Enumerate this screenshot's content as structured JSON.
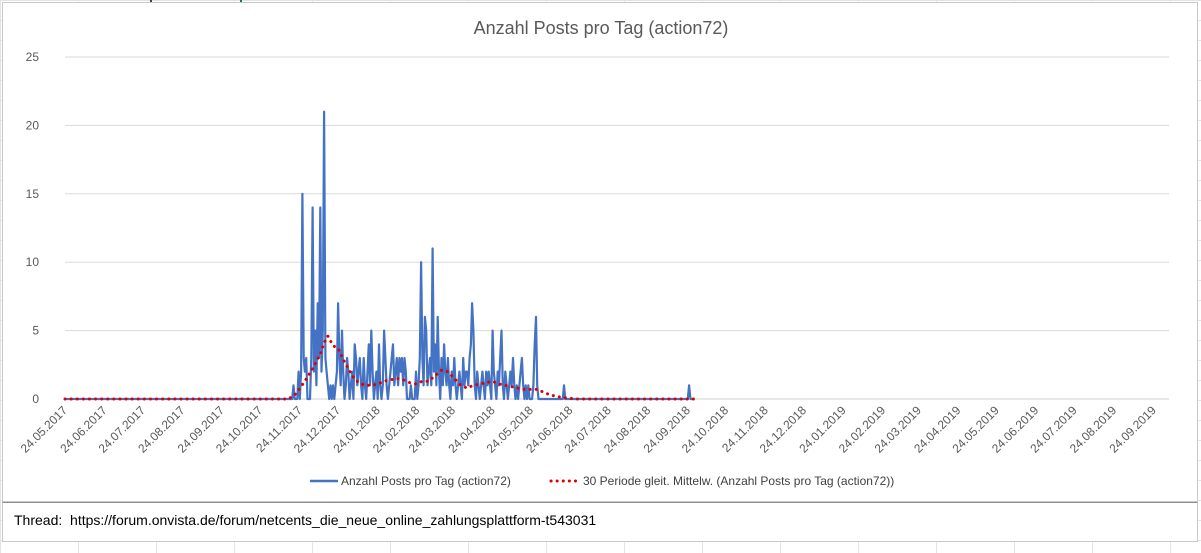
{
  "chart_data": {
    "type": "line",
    "title": "Anzahl Posts pro Tag (action72)",
    "xlabel": "",
    "ylabel": "",
    "ylim": [
      0,
      25
    ],
    "yticks": [
      0,
      5,
      10,
      15,
      20,
      25
    ],
    "grid": true,
    "legend_position": "bottom",
    "x_range_days": [
      0,
      493
    ],
    "x_ticks": [
      {
        "day": 0,
        "label": "24.05.2017"
      },
      {
        "day": 31,
        "label": "24.06.2017"
      },
      {
        "day": 61,
        "label": "24.07.2017"
      },
      {
        "day": 92,
        "label": "24.08.2017"
      },
      {
        "day": 123,
        "label": "24.09.2017"
      },
      {
        "day": 153,
        "label": "24.10.2017"
      },
      {
        "day": 184,
        "label": "24.11.2017"
      },
      {
        "day": 214,
        "label": "24.12.2017"
      },
      {
        "day": 245,
        "label": "24.01.2018"
      },
      {
        "day": 276,
        "label": "24.02.2018"
      },
      {
        "day": 304,
        "label": "24.03.2018"
      },
      {
        "day": 335,
        "label": "24.04.2018"
      },
      {
        "day": 365,
        "label": "24.05.2018"
      },
      {
        "day": 396,
        "label": "24.06.2018"
      },
      {
        "day": 426,
        "label": "24.07.2018"
      },
      {
        "day": 457,
        "label": "24.08.2018"
      },
      {
        "day": 488,
        "label": "24.09.2018"
      },
      {
        "day": 518,
        "label": "24.10.2018"
      },
      {
        "day": 549,
        "label": "24.11.2018"
      },
      {
        "day": 579,
        "label": "24.12.2018"
      },
      {
        "day": 610,
        "label": "24.01.2019"
      },
      {
        "day": 641,
        "label": "24.02.2019"
      },
      {
        "day": 669,
        "label": "24.03.2019"
      },
      {
        "day": 700,
        "label": "24.04.2019"
      },
      {
        "day": 730,
        "label": "24.05.2019"
      },
      {
        "day": 761,
        "label": "24.06.2019"
      },
      {
        "day": 791,
        "label": "24.07.2019"
      },
      {
        "day": 822,
        "label": "24.08.2019"
      },
      {
        "day": 853,
        "label": "24.09.2019"
      }
    ],
    "x_max_day": 865,
    "series": [
      {
        "name": "Anzahl Posts pro Tag (action72)",
        "style": "solid",
        "color": "#4472C4",
        "points": [
          [
            0,
            0
          ],
          [
            178,
            0
          ],
          [
            179,
            1
          ],
          [
            180,
            0
          ],
          [
            182,
            0
          ],
          [
            183,
            2
          ],
          [
            184,
            0
          ],
          [
            185,
            2
          ],
          [
            186,
            15
          ],
          [
            187,
            3
          ],
          [
            188,
            2
          ],
          [
            189,
            3
          ],
          [
            190,
            0
          ],
          [
            192,
            0
          ],
          [
            193,
            3
          ],
          [
            194,
            14
          ],
          [
            195,
            2
          ],
          [
            196,
            5
          ],
          [
            197,
            1
          ],
          [
            198,
            7
          ],
          [
            199,
            3
          ],
          [
            200,
            14
          ],
          [
            201,
            2
          ],
          [
            202,
            5
          ],
          [
            203,
            21
          ],
          [
            204,
            3
          ],
          [
            205,
            2
          ],
          [
            206,
            1
          ],
          [
            207,
            0
          ],
          [
            208,
            1
          ],
          [
            209,
            0
          ],
          [
            210,
            1
          ],
          [
            211,
            0
          ],
          [
            212,
            1
          ],
          [
            213,
            2
          ],
          [
            214,
            7
          ],
          [
            215,
            3
          ],
          [
            216,
            1
          ],
          [
            217,
            5
          ],
          [
            218,
            2
          ],
          [
            219,
            0
          ],
          [
            220,
            1
          ],
          [
            221,
            3
          ],
          [
            222,
            2
          ],
          [
            223,
            0
          ],
          [
            224,
            1
          ],
          [
            225,
            2
          ],
          [
            226,
            0
          ],
          [
            227,
            4
          ],
          [
            228,
            3
          ],
          [
            229,
            1
          ],
          [
            230,
            2
          ],
          [
            231,
            3
          ],
          [
            232,
            1
          ],
          [
            233,
            0
          ],
          [
            234,
            3
          ],
          [
            235,
            1
          ],
          [
            236,
            0
          ],
          [
            237,
            2
          ],
          [
            238,
            4
          ],
          [
            239,
            1
          ],
          [
            240,
            5
          ],
          [
            241,
            2
          ],
          [
            242,
            0
          ],
          [
            243,
            1
          ],
          [
            244,
            2
          ],
          [
            245,
            0
          ],
          [
            246,
            4
          ],
          [
            247,
            1
          ],
          [
            248,
            0
          ],
          [
            249,
            1
          ],
          [
            250,
            5
          ],
          [
            251,
            3
          ],
          [
            252,
            1
          ],
          [
            253,
            0
          ],
          [
            254,
            1
          ],
          [
            255,
            2
          ],
          [
            256,
            3
          ],
          [
            257,
            4
          ],
          [
            258,
            1
          ],
          [
            259,
            2
          ],
          [
            260,
            3
          ],
          [
            261,
            1
          ],
          [
            262,
            3
          ],
          [
            263,
            2
          ],
          [
            264,
            3
          ],
          [
            265,
            1
          ],
          [
            266,
            3
          ],
          [
            267,
            2
          ],
          [
            268,
            0
          ],
          [
            270,
            0
          ],
          [
            271,
            1
          ],
          [
            272,
            0
          ],
          [
            274,
            0
          ],
          [
            275,
            2
          ],
          [
            276,
            0
          ],
          [
            277,
            1
          ],
          [
            278,
            3
          ],
          [
            279,
            10
          ],
          [
            280,
            3
          ],
          [
            281,
            1
          ],
          [
            282,
            6
          ],
          [
            283,
            5
          ],
          [
            284,
            1
          ],
          [
            285,
            2
          ],
          [
            286,
            3
          ],
          [
            287,
            1
          ],
          [
            288,
            11
          ],
          [
            289,
            2
          ],
          [
            290,
            4
          ],
          [
            291,
            1
          ],
          [
            292,
            6
          ],
          [
            293,
            2
          ],
          [
            294,
            0
          ],
          [
            295,
            3
          ],
          [
            296,
            1
          ],
          [
            297,
            4
          ],
          [
            298,
            2
          ],
          [
            299,
            1
          ],
          [
            300,
            3
          ],
          [
            301,
            1
          ],
          [
            302,
            0
          ],
          [
            303,
            2
          ],
          [
            304,
            1
          ],
          [
            305,
            3
          ],
          [
            306,
            1
          ],
          [
            307,
            0
          ],
          [
            308,
            1
          ],
          [
            309,
            2
          ],
          [
            310,
            1
          ],
          [
            311,
            0
          ],
          [
            312,
            3
          ],
          [
            313,
            1
          ],
          [
            314,
            2
          ],
          [
            315,
            2
          ],
          [
            316,
            1
          ],
          [
            317,
            3
          ],
          [
            318,
            4
          ],
          [
            319,
            7
          ],
          [
            320,
            5
          ],
          [
            321,
            1
          ],
          [
            322,
            0
          ],
          [
            323,
            2
          ],
          [
            324,
            1
          ],
          [
            325,
            0
          ],
          [
            326,
            1
          ],
          [
            327,
            2
          ],
          [
            328,
            1
          ],
          [
            329,
            0
          ],
          [
            330,
            2
          ],
          [
            331,
            1
          ],
          [
            332,
            2
          ],
          [
            333,
            1
          ],
          [
            334,
            0
          ],
          [
            335,
            5
          ],
          [
            336,
            2
          ],
          [
            337,
            1
          ],
          [
            338,
            0
          ],
          [
            339,
            2
          ],
          [
            340,
            1
          ],
          [
            341,
            3
          ],
          [
            342,
            5
          ],
          [
            343,
            1
          ],
          [
            344,
            0
          ],
          [
            345,
            2
          ],
          [
            346,
            1
          ],
          [
            347,
            0
          ],
          [
            348,
            1
          ],
          [
            349,
            2
          ],
          [
            350,
            1
          ],
          [
            351,
            3
          ],
          [
            352,
            1
          ],
          [
            353,
            0
          ],
          [
            354,
            1
          ],
          [
            355,
            0
          ],
          [
            356,
            1
          ],
          [
            357,
            2
          ],
          [
            358,
            3
          ],
          [
            359,
            1
          ],
          [
            360,
            0
          ],
          [
            361,
            1
          ],
          [
            362,
            0
          ],
          [
            363,
            1
          ],
          [
            364,
            0
          ],
          [
            366,
            0
          ],
          [
            367,
            1
          ],
          [
            368,
            4
          ],
          [
            369,
            6
          ],
          [
            370,
            1
          ],
          [
            371,
            0
          ],
          [
            373,
            0
          ],
          [
            374,
            0
          ],
          [
            380,
            0
          ],
          [
            390,
            0
          ],
          [
            391,
            1
          ],
          [
            392,
            0
          ],
          [
            480,
            0
          ],
          [
            488,
            0
          ],
          [
            489,
            1
          ],
          [
            490,
            0
          ],
          [
            493,
            0
          ]
        ]
      },
      {
        "name": "30 Periode gleit. Mittelw. (Anzahl Posts pro Tag (action72))",
        "style": "dotted",
        "color": "#E00000",
        "points": [
          [
            0,
            0
          ],
          [
            175,
            0
          ],
          [
            180,
            0.3
          ],
          [
            185,
            0.9
          ],
          [
            190,
            1.6
          ],
          [
            195,
            2.4
          ],
          [
            200,
            3.3
          ],
          [
            203,
            4.1
          ],
          [
            206,
            4.6
          ],
          [
            210,
            3.9
          ],
          [
            214,
            3.7
          ],
          [
            218,
            2.9
          ],
          [
            222,
            2.2
          ],
          [
            226,
            1.6
          ],
          [
            230,
            1.2
          ],
          [
            235,
            1.0
          ],
          [
            240,
            1.0
          ],
          [
            245,
            1.1
          ],
          [
            250,
            1.3
          ],
          [
            255,
            1.4
          ],
          [
            260,
            1.5
          ],
          [
            265,
            1.4
          ],
          [
            270,
            1.2
          ],
          [
            275,
            1.1
          ],
          [
            280,
            1.3
          ],
          [
            285,
            1.3
          ],
          [
            290,
            1.7
          ],
          [
            295,
            2.1
          ],
          [
            300,
            2.0
          ],
          [
            305,
            1.5
          ],
          [
            310,
            1.0
          ],
          [
            315,
            0.8
          ],
          [
            320,
            1.0
          ],
          [
            325,
            1.1
          ],
          [
            330,
            1.2
          ],
          [
            335,
            1.3
          ],
          [
            340,
            1.1
          ],
          [
            345,
            1.0
          ],
          [
            350,
            0.9
          ],
          [
            355,
            0.8
          ],
          [
            360,
            0.7
          ],
          [
            365,
            0.7
          ],
          [
            370,
            0.7
          ],
          [
            375,
            0.5
          ],
          [
            380,
            0.3
          ],
          [
            385,
            0.2
          ],
          [
            390,
            0.1
          ],
          [
            400,
            0
          ],
          [
            493,
            0
          ]
        ]
      }
    ]
  },
  "footer": {
    "thread_label": "Thread:",
    "thread_url": "https://forum.onvista.de/forum/netcents_die_neue_online_zahlungsplattform-t543031"
  }
}
